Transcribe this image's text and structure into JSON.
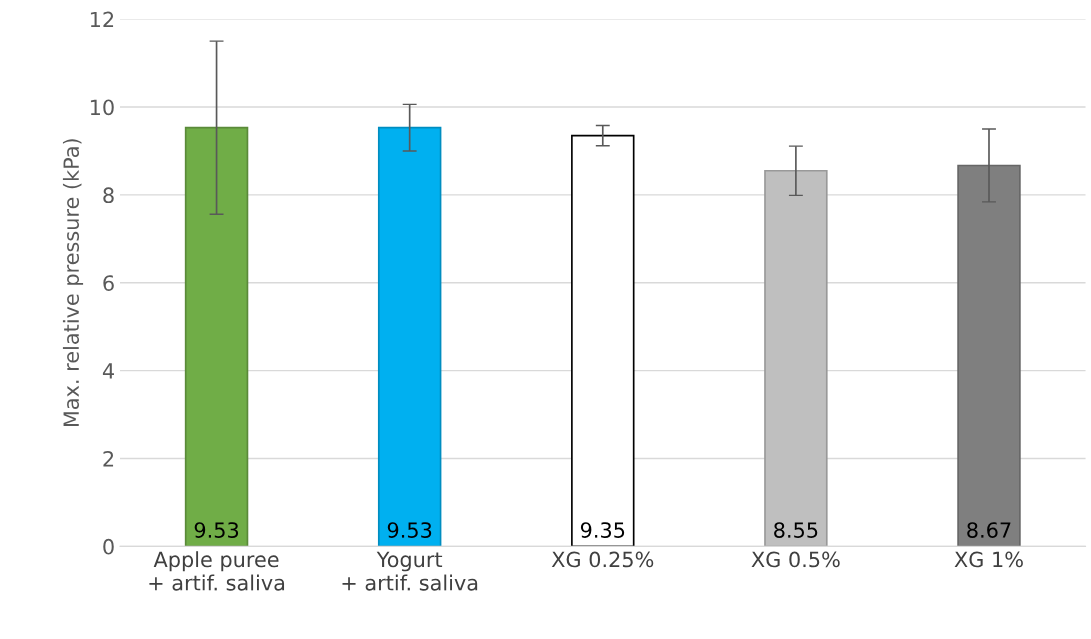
{
  "chart_data": {
    "type": "bar",
    "ylabel": "Max. relative pressure (kPa)",
    "categories": [
      "Apple puree\n+ artif. saliva",
      "Yogurt\n+ artif. saliva",
      "XG 0.25%",
      "XG 0.5%",
      "XG 1%"
    ],
    "values": [
      9.53,
      9.53,
      9.35,
      8.55,
      8.67
    ],
    "errors": [
      1.97,
      0.53,
      0.23,
      0.56,
      0.83
    ],
    "colors": [
      "#70ad47",
      "#00b0f0",
      "#ffffff",
      "#bfbfbf",
      "#7f7f7f"
    ],
    "ylim": [
      0,
      12
    ],
    "yticks": [
      0,
      2,
      4,
      6,
      8,
      10,
      12
    ],
    "grid": "y",
    "data_labels": true
  }
}
